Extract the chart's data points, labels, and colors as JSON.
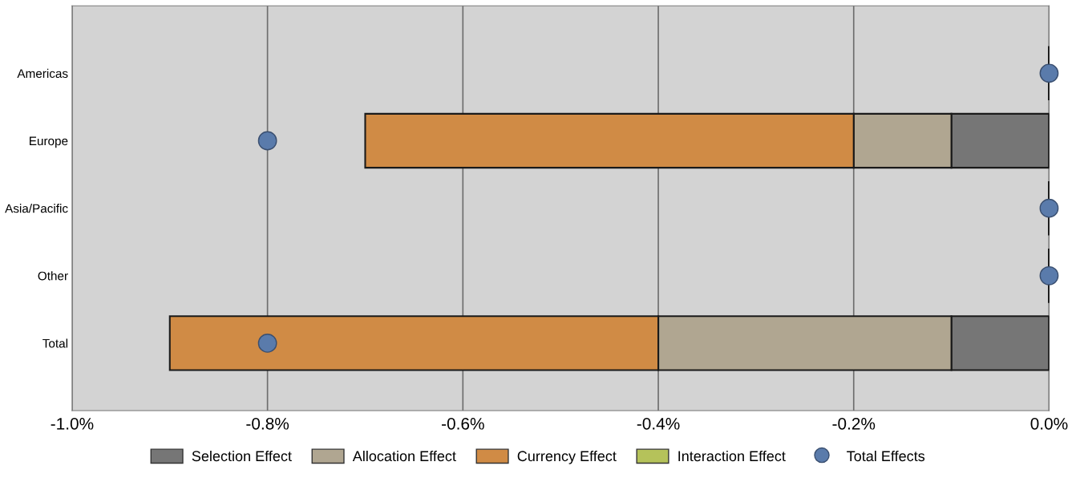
{
  "chart_data": {
    "type": "bar",
    "orientation": "horizontal",
    "stacked": true,
    "categories": [
      "Americas",
      "Europe",
      "Asia/Pacific",
      "Other",
      "Total"
    ],
    "series": [
      {
        "name": "Selection Effect",
        "color": "#767676",
        "values": [
          0,
          -0.1,
          0,
          0,
          -0.1
        ]
      },
      {
        "name": "Allocation Effect",
        "color": "#b0a691",
        "values": [
          0,
          -0.1,
          0,
          0,
          -0.3
        ]
      },
      {
        "name": "Currency Effect",
        "color": "#d08b45",
        "values": [
          0,
          -0.5,
          0,
          0,
          -0.5
        ]
      },
      {
        "name": "Interaction Effect",
        "color": "#b5c25a",
        "values": [
          0,
          0,
          0,
          0,
          0
        ]
      },
      {
        "name": "Total Effects",
        "type": "scatter",
        "color": "#5a7bab",
        "marker": "circle",
        "values": [
          0,
          -0.8,
          0,
          0,
          -0.8
        ]
      }
    ],
    "xlim": [
      -1.0,
      0.0
    ],
    "xticks": [
      {
        "value": -1.0,
        "label": "-1.0%"
      },
      {
        "value": -0.8,
        "label": "-0.8%"
      },
      {
        "value": -0.6,
        "label": "-0.6%"
      },
      {
        "value": -0.4,
        "label": "-0.4%"
      },
      {
        "value": -0.2,
        "label": "-0.2%"
      },
      {
        "value": 0.0,
        "label": "0.0%"
      }
    ],
    "grid": "x",
    "legend": "bottom"
  }
}
